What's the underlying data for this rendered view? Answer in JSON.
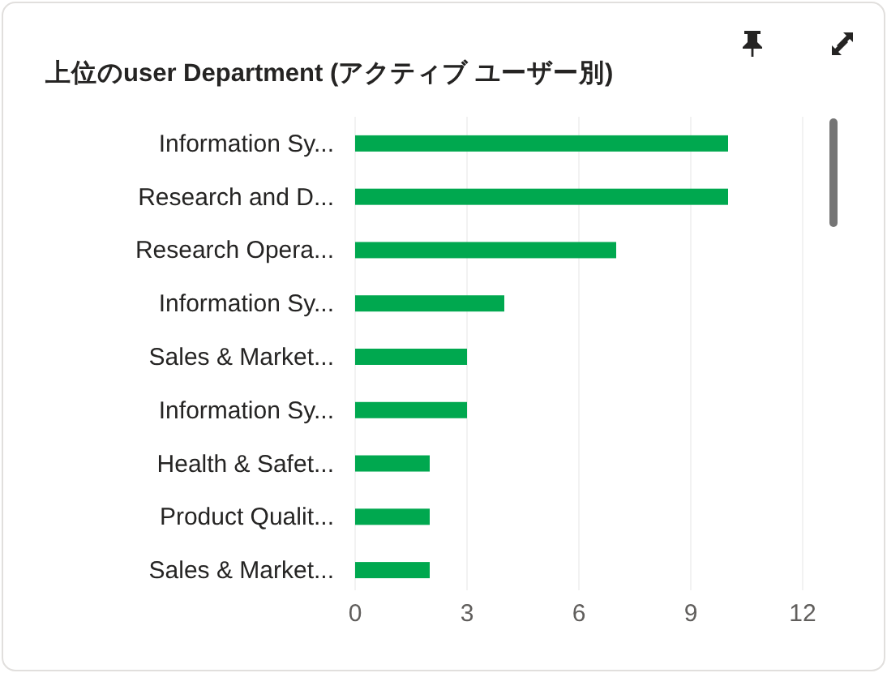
{
  "chart_data": {
    "type": "bar",
    "orientation": "horizontal",
    "title": "上位のuser Department (アクティブ ユーザー別)",
    "categories": [
      "Information Sy...",
      "Research and D...",
      "Research Opera...",
      "Information Sy...",
      "Sales & Market...",
      "Information Sy...",
      "Health & Safet...",
      "Product Qualit...",
      "Sales & Market..."
    ],
    "values": [
      10,
      10,
      7,
      4,
      3,
      3,
      2,
      2,
      2
    ],
    "color": "#00a84f",
    "xlim": [
      0,
      12
    ],
    "xticks": [
      0,
      3,
      6,
      9,
      12
    ],
    "grid": "x"
  }
}
